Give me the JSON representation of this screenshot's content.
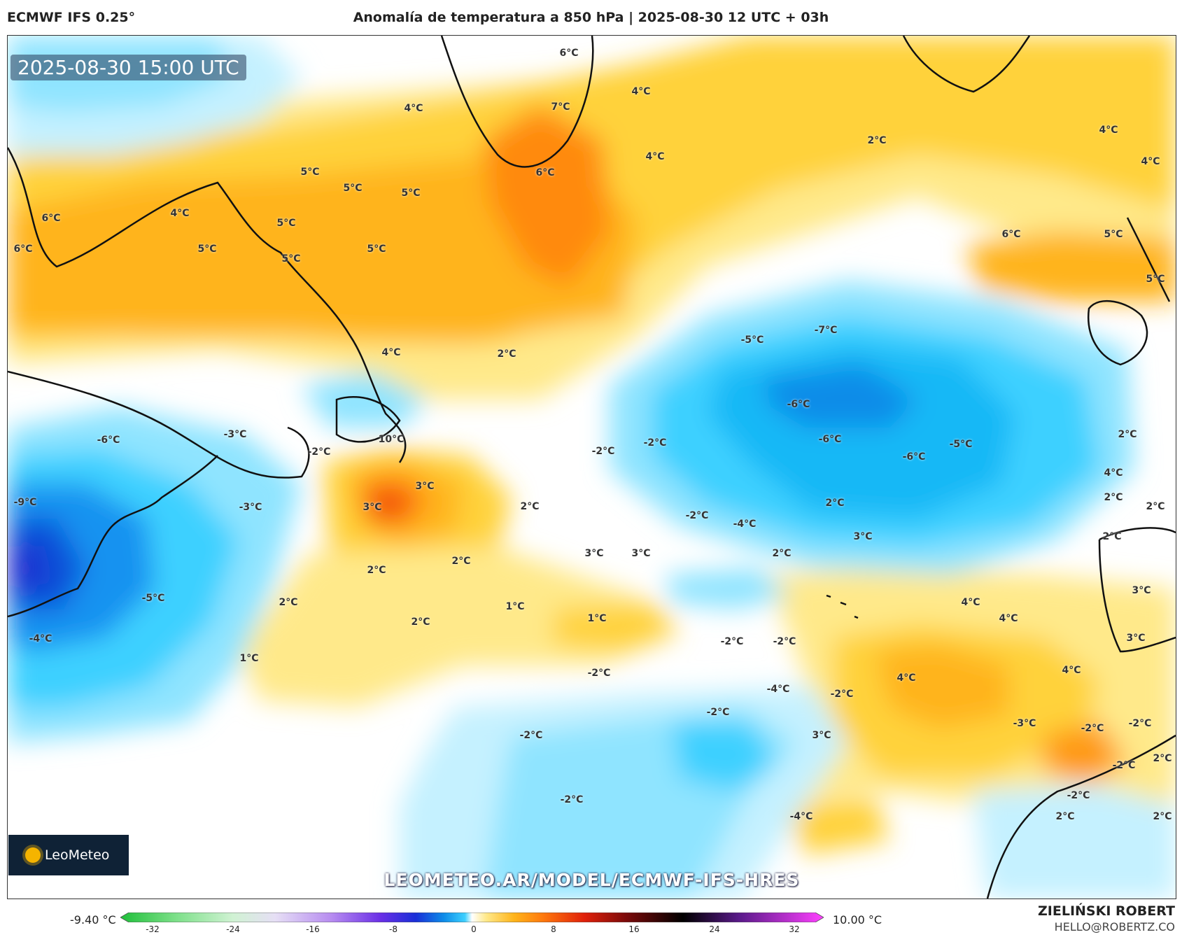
{
  "header": {
    "model": "ECMWF IFS 0.25°",
    "title": "Anomalía de temperatura a 850 hPa | 2025-08-30 12 UTC + 03h"
  },
  "map": {
    "valid_time": "2025-08-30 15:00 UTC",
    "labels": {
      "l01": "6°C",
      "l02": "7°C",
      "l03": "6°C",
      "l04": "4°C",
      "l05": "4°C",
      "l06": "4°C",
      "l07": "2°C",
      "l08": "4°C",
      "l09": "4°C",
      "l10": "5°C",
      "l11": "5°C",
      "l12": "5°C",
      "l13": "4°C",
      "l14": "6°C",
      "l15": "6°C",
      "l16": "5°C",
      "l17": "5°C",
      "l18": "5°C",
      "l19": "5°C",
      "l20": "6°C",
      "l21": "5°C",
      "l22": "5°C",
      "l23": "-7°C",
      "l24": "-5°C",
      "l25": "4°C",
      "l26": "2°C",
      "l27": "-6°C",
      "l28": "-6°C",
      "l29": "-5°C",
      "l30": "-6°C",
      "l31": "2°C",
      "l32": "-6°C",
      "l33": "-3°C",
      "l34": "-2°C",
      "l35": "10°C",
      "l36": "-2°C",
      "l37": "-2°C",
      "l38": "4°C",
      "l39": "-9°C",
      "l40": "-3°C",
      "l41": "3°C",
      "l42": "3°C",
      "l43": "2°C",
      "l44": "2°C",
      "l45": "-2°C",
      "l46": "-4°C",
      "l47": "3°C",
      "l48": "2°C",
      "l49": "2°C",
      "l50": "2°C",
      "l51": "3°C",
      "l52": "3°C",
      "l53": "2°C",
      "l54": "2°C",
      "l55": "2°C",
      "l56": "-5°C",
      "l57": "2°C",
      "l58": "1°C",
      "l59": "1°C",
      "l60": "2°C",
      "l61": "4°C",
      "l62": "4°C",
      "l63": "3°C",
      "l64": "-4°C",
      "l65": "1°C",
      "l66": "-2°C",
      "l67": "-2°C",
      "l68": "-2°C",
      "l69": "3°C",
      "l70": "4°C",
      "l71": "4°C",
      "l72": "-4°C",
      "l73": "-2°C",
      "l74": "-2°C",
      "l75": "-3°C",
      "l76": "-2°C",
      "l77": "-2°C",
      "l78": "3°C",
      "l79": "-2°C",
      "l80": "-2°C",
      "l81": "2°C",
      "l82": "-2°C",
      "l83": "-2°C",
      "l84": "2°C",
      "l85": "2°C",
      "l86": "-4°C"
    },
    "logo_text": "LeoMeteo",
    "watermark_url": "LEOMETEO.AR/MODEL/ECMWF-IFS-HRES"
  },
  "colorbar": {
    "min_label": "-9.40 °C",
    "max_label": "10.00 °C",
    "ticks": [
      "-32",
      "-24",
      "-16",
      "-8",
      "0",
      "8",
      "16",
      "24",
      "32"
    ]
  },
  "footer": {
    "author": "ZIELIŃSKI ROBERT",
    "email": "HELLO@ROBERTZ.CO"
  }
}
